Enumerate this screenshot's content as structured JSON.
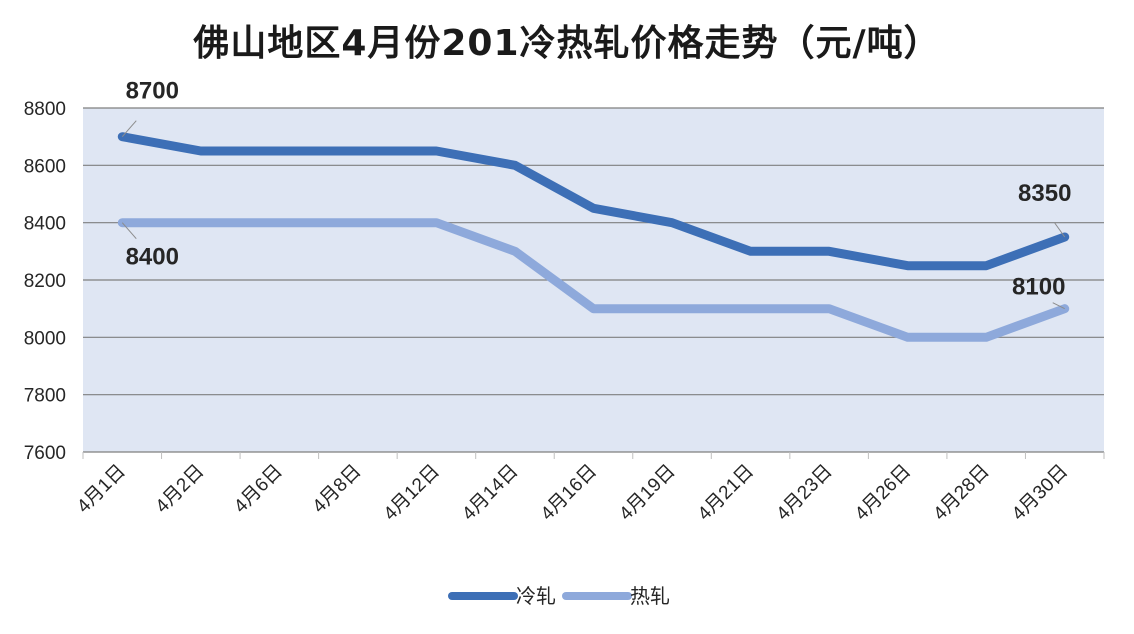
{
  "chart_data": {
    "type": "line",
    "title": "佛山地区4月份201冷热轧价格走势（元/吨）",
    "categories": [
      "4月1日",
      "4月2日",
      "4月6日",
      "4月8日",
      "4月12日",
      "4月14日",
      "4月16日",
      "4月19日",
      "4月21日",
      "4月23日",
      "4月26日",
      "4月28日",
      "4月30日"
    ],
    "series": [
      {
        "name": "冷轧",
        "color": "#3d6fb6",
        "values": [
          8700,
          8650,
          8650,
          8650,
          8650,
          8600,
          8450,
          8400,
          8300,
          8300,
          8250,
          8250,
          8350
        ]
      },
      {
        "name": "热轧",
        "color": "#8ea9db",
        "values": [
          8400,
          8400,
          8400,
          8400,
          8400,
          8300,
          8100,
          8100,
          8100,
          8100,
          8000,
          8000,
          8100
        ]
      }
    ],
    "ylim": [
      7600,
      8800
    ],
    "yticks": [
      "7600",
      "7800",
      "8000",
      "8200",
      "8400",
      "8600",
      "8800"
    ],
    "data_labels": [
      {
        "series": 0,
        "index": 0,
        "text": "8700"
      },
      {
        "series": 1,
        "index": 0,
        "text": "8400"
      },
      {
        "series": 0,
        "index": 12,
        "text": "8350"
      },
      {
        "series": 1,
        "index": 12,
        "text": "8100"
      }
    ],
    "plot_background": "#dfe6f3",
    "grid": true,
    "legend_position": "bottom"
  }
}
